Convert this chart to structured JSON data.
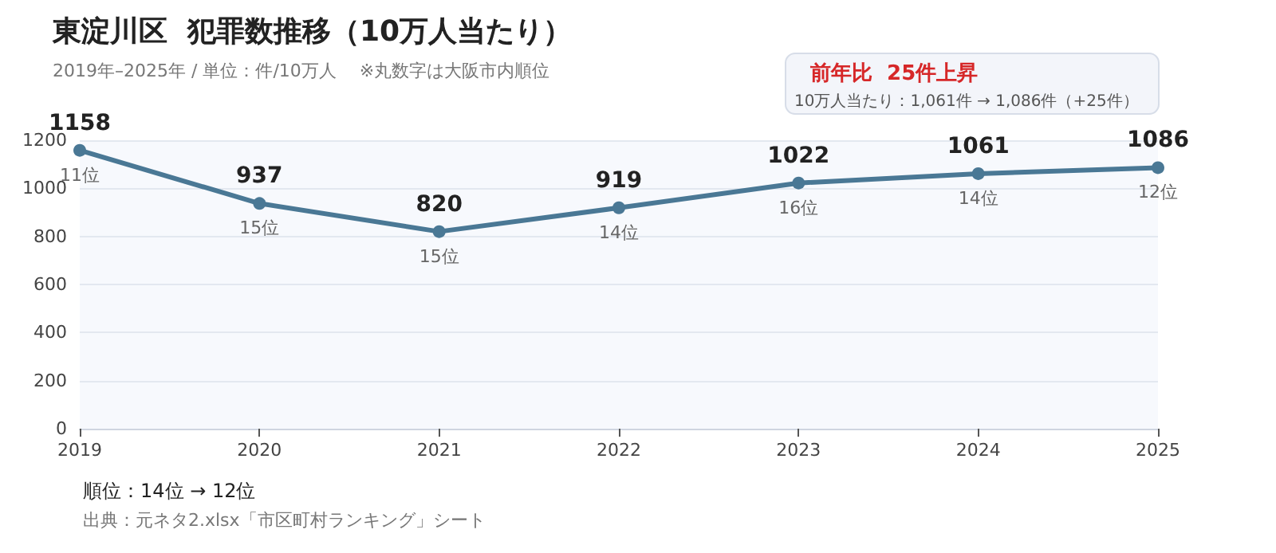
{
  "chart_data": {
    "type": "line",
    "title": "東淀川区  犯罪数推移（10万人当たり）",
    "subtitle": "2019年–2025年 / 単位：件/10万人　 ※丸数字は大阪市内順位",
    "categories": [
      "2019",
      "2020",
      "2021",
      "2022",
      "2023",
      "2024",
      "2025"
    ],
    "series": [
      {
        "color": "#4a7895",
        "values": [
          1158,
          937,
          820,
          919,
          1022,
          1061,
          1086
        ]
      }
    ],
    "ylim": [
      0,
      1200
    ],
    "yticks": [
      0,
      200,
      400,
      600,
      800,
      1000,
      1200
    ],
    "grid": "y",
    "marker": "circle",
    "line_style": "solid",
    "data_labels": true,
    "annotations": [
      {
        "text": "11位",
        "x": "2019",
        "y": 1158
      },
      {
        "text": "15位",
        "x": "2020",
        "y": 937
      },
      {
        "text": "15位",
        "x": "2021",
        "y": 820
      },
      {
        "text": "14位",
        "x": "2022",
        "y": 919
      },
      {
        "text": "16位",
        "x": "2023",
        "y": 1022
      },
      {
        "text": "14位",
        "x": "2024",
        "y": 1061
      },
      {
        "text": "12位",
        "x": "2025",
        "y": 1086
      },
      "前年比  25件上昇",
      "10万人当たり：1,061件 → 1,086件（+25件）",
      "順位：14位 → 12位",
      "出典：元ネタ2.xlsx「市区町村ランキング」シート"
    ]
  }
}
